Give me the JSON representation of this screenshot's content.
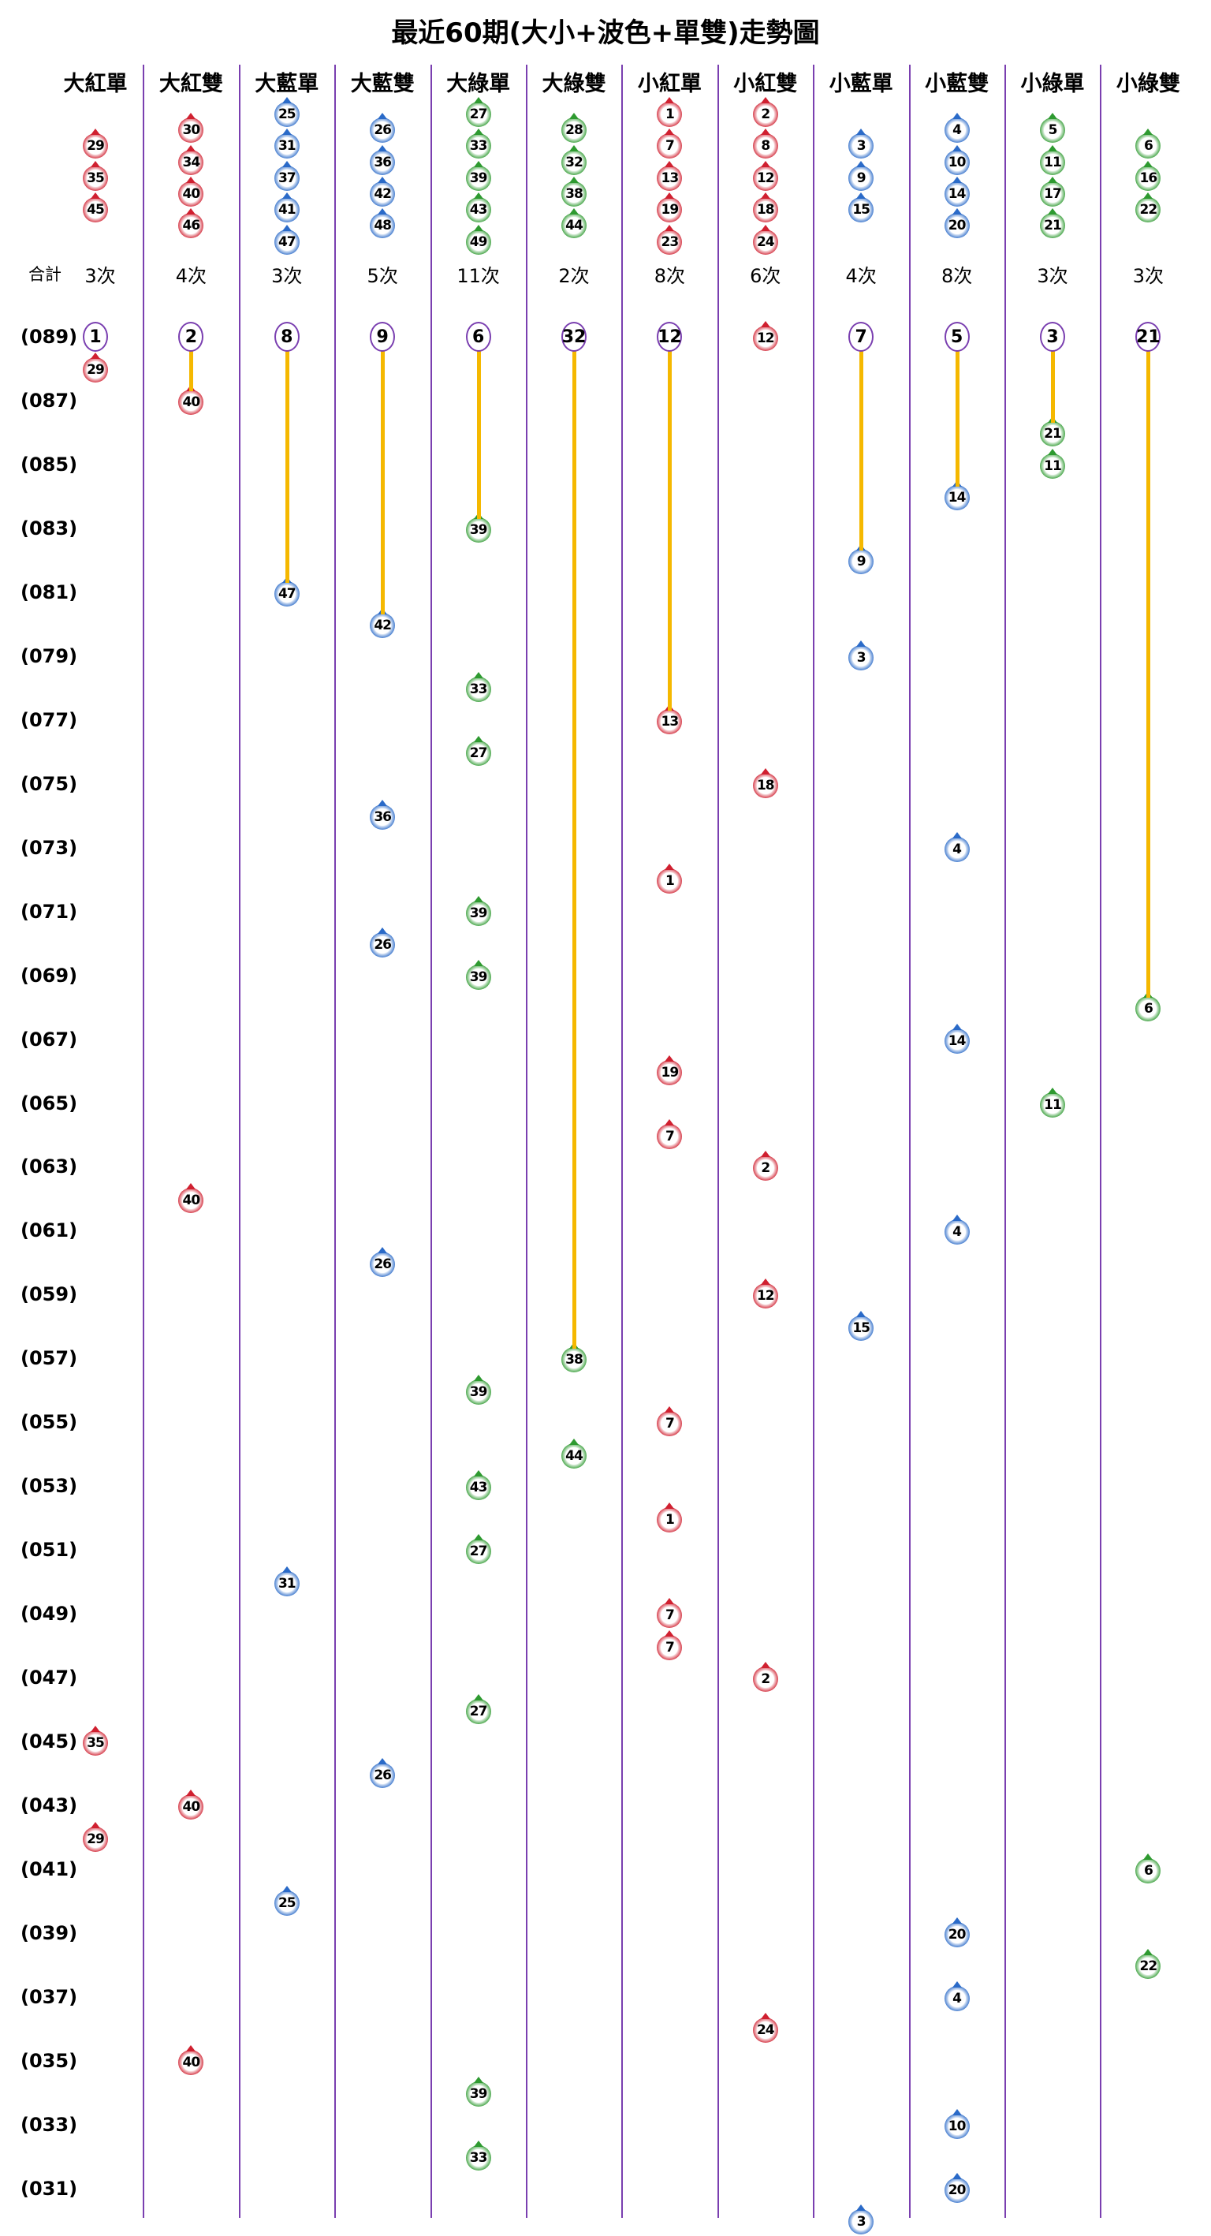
{
  "chart_data": {
    "type": "table",
    "title": "最近60期(大小+波色+單雙)走勢圖",
    "total_label": "合計",
    "periods": [
      "089",
      "088",
      "087",
      "086",
      "085",
      "084",
      "083",
      "082",
      "081",
      "080",
      "079",
      "078",
      "077",
      "076",
      "075",
      "074",
      "073",
      "072",
      "071",
      "070",
      "069",
      "068",
      "067",
      "066",
      "065",
      "064",
      "063",
      "062",
      "061",
      "060",
      "059",
      "058",
      "057",
      "056",
      "055",
      "054",
      "053",
      "052",
      "051",
      "050",
      "049",
      "048",
      "047",
      "046",
      "045",
      "044",
      "043",
      "042",
      "041",
      "040",
      "039",
      "038",
      "037",
      "036",
      "035",
      "034",
      "033",
      "032",
      "031",
      "030"
    ],
    "row_labels": [
      "(089)",
      "(087)",
      "(085)",
      "(083)",
      "(081)",
      "(079)",
      "(077)",
      "(075)",
      "(073)",
      "(071)",
      "(069)",
      "(067)",
      "(065)",
      "(063)",
      "(061)",
      "(059)",
      "(057)",
      "(055)",
      "(053)",
      "(051)",
      "(049)",
      "(047)",
      "(045)",
      "(043)",
      "(041)",
      "(039)",
      "(037)",
      "(035)",
      "(033)",
      "(031)"
    ],
    "line_color": "#f5b800",
    "columns": [
      {
        "header": "大紅單",
        "color": "#d02030",
        "total": "3次",
        "omission": "1",
        "top": [
          {
            "n": "29",
            "slot": 2
          },
          {
            "n": "35",
            "slot": 4
          },
          {
            "n": "45",
            "slot": 6
          }
        ],
        "balls": [
          {
            "p": "088",
            "n": "29"
          },
          {
            "p": "045",
            "n": "35"
          },
          {
            "p": "042",
            "n": "29"
          }
        ]
      },
      {
        "header": "大紅雙",
        "color": "#d02030",
        "total": "4次",
        "omission": "2",
        "top": [
          {
            "n": "30",
            "slot": 1
          },
          {
            "n": "34",
            "slot": 3
          },
          {
            "n": "40",
            "slot": 5
          },
          {
            "n": "46",
            "slot": 7
          }
        ],
        "balls": [
          {
            "p": "087",
            "n": "40"
          },
          {
            "p": "062",
            "n": "40"
          },
          {
            "p": "043",
            "n": "40"
          },
          {
            "p": "035",
            "n": "40"
          }
        ]
      },
      {
        "header": "大藍單",
        "color": "#2a6ac8",
        "total": "3次",
        "omission": "8",
        "top": [
          {
            "n": "25",
            "slot": 0
          },
          {
            "n": "31",
            "slot": 2
          },
          {
            "n": "37",
            "slot": 4
          },
          {
            "n": "41",
            "slot": 6
          },
          {
            "n": "47",
            "slot": 8
          }
        ],
        "balls": [
          {
            "p": "081",
            "n": "47"
          },
          {
            "p": "050",
            "n": "31"
          },
          {
            "p": "040",
            "n": "25"
          }
        ]
      },
      {
        "header": "大藍雙",
        "color": "#2a6ac8",
        "total": "5次",
        "omission": "9",
        "top": [
          {
            "n": "26",
            "slot": 1
          },
          {
            "n": "36",
            "slot": 3
          },
          {
            "n": "42",
            "slot": 5
          },
          {
            "n": "48",
            "slot": 7
          }
        ],
        "balls": [
          {
            "p": "080",
            "n": "42"
          },
          {
            "p": "074",
            "n": "36"
          },
          {
            "p": "070",
            "n": "26"
          },
          {
            "p": "060",
            "n": "26"
          },
          {
            "p": "044",
            "n": "26"
          }
        ]
      },
      {
        "header": "大綠單",
        "color": "#2e9a30",
        "total": "11次",
        "omission": "6",
        "top": [
          {
            "n": "27",
            "slot": 0
          },
          {
            "n": "33",
            "slot": 2
          },
          {
            "n": "39",
            "slot": 4
          },
          {
            "n": "43",
            "slot": 6
          },
          {
            "n": "49",
            "slot": 8
          }
        ],
        "balls": [
          {
            "p": "083",
            "n": "39"
          },
          {
            "p": "078",
            "n": "33"
          },
          {
            "p": "076",
            "n": "27"
          },
          {
            "p": "071",
            "n": "39"
          },
          {
            "p": "069",
            "n": "39"
          },
          {
            "p": "056",
            "n": "39"
          },
          {
            "p": "053",
            "n": "43"
          },
          {
            "p": "051",
            "n": "27"
          },
          {
            "p": "046",
            "n": "27"
          },
          {
            "p": "034",
            "n": "39"
          },
          {
            "p": "032",
            "n": "33"
          }
        ]
      },
      {
        "header": "大綠雙",
        "color": "#2e9a30",
        "total": "2次",
        "omission": "32",
        "top": [
          {
            "n": "28",
            "slot": 1
          },
          {
            "n": "32",
            "slot": 3
          },
          {
            "n": "38",
            "slot": 5
          },
          {
            "n": "44",
            "slot": 7
          }
        ],
        "balls": [
          {
            "p": "057",
            "n": "38"
          },
          {
            "p": "054",
            "n": "44"
          }
        ]
      },
      {
        "header": "小紅單",
        "color": "#d02030",
        "total": "8次",
        "omission": "12",
        "top": [
          {
            "n": "1",
            "slot": 0
          },
          {
            "n": "7",
            "slot": 2
          },
          {
            "n": "13",
            "slot": 4
          },
          {
            "n": "19",
            "slot": 6
          },
          {
            "n": "23",
            "slot": 8
          }
        ],
        "balls": [
          {
            "p": "077",
            "n": "13"
          },
          {
            "p": "072",
            "n": "1"
          },
          {
            "p": "066",
            "n": "19"
          },
          {
            "p": "064",
            "n": "7"
          },
          {
            "p": "055",
            "n": "7"
          },
          {
            "p": "052",
            "n": "1"
          },
          {
            "p": "049",
            "n": "7"
          },
          {
            "p": "048",
            "n": "7"
          }
        ]
      },
      {
        "header": "小紅雙",
        "color": "#d02030",
        "total": "6次",
        "omission": "",
        "top": [
          {
            "n": "2",
            "slot": 0
          },
          {
            "n": "8",
            "slot": 2
          },
          {
            "n": "12",
            "slot": 4
          },
          {
            "n": "18",
            "slot": 6
          },
          {
            "n": "24",
            "slot": 8
          }
        ],
        "balls": [
          {
            "p": "089",
            "n": "12"
          },
          {
            "p": "075",
            "n": "18"
          },
          {
            "p": "063",
            "n": "2"
          },
          {
            "p": "059",
            "n": "12"
          },
          {
            "p": "047",
            "n": "2"
          },
          {
            "p": "036",
            "n": "24"
          }
        ]
      },
      {
        "header": "小藍單",
        "color": "#2a6ac8",
        "total": "4次",
        "omission": "7",
        "top": [
          {
            "n": "3",
            "slot": 2
          },
          {
            "n": "9",
            "slot": 4
          },
          {
            "n": "15",
            "slot": 6
          }
        ],
        "balls": [
          {
            "p": "082",
            "n": "9"
          },
          {
            "p": "079",
            "n": "3"
          },
          {
            "p": "058",
            "n": "15"
          },
          {
            "p": "030",
            "n": "3"
          }
        ]
      },
      {
        "header": "小藍雙",
        "color": "#2a6ac8",
        "total": "8次",
        "omission": "5",
        "top": [
          {
            "n": "4",
            "slot": 1
          },
          {
            "n": "10",
            "slot": 3
          },
          {
            "n": "14",
            "slot": 5
          },
          {
            "n": "20",
            "slot": 7
          }
        ],
        "balls": [
          {
            "p": "084",
            "n": "14"
          },
          {
            "p": "073",
            "n": "4"
          },
          {
            "p": "067",
            "n": "14"
          },
          {
            "p": "061",
            "n": "4"
          },
          {
            "p": "039",
            "n": "20"
          },
          {
            "p": "037",
            "n": "4"
          },
          {
            "p": "033",
            "n": "10"
          },
          {
            "p": "031",
            "n": "20"
          }
        ]
      },
      {
        "header": "小綠單",
        "color": "#2e9a30",
        "total": "3次",
        "omission": "3",
        "top": [
          {
            "n": "5",
            "slot": 1
          },
          {
            "n": "11",
            "slot": 3
          },
          {
            "n": "17",
            "slot": 5
          },
          {
            "n": "21",
            "slot": 7
          }
        ],
        "balls": [
          {
            "p": "086",
            "n": "21"
          },
          {
            "p": "085",
            "n": "11"
          },
          {
            "p": "065",
            "n": "11"
          }
        ]
      },
      {
        "header": "小綠雙",
        "color": "#2e9a30",
        "total": "3次",
        "omission": "21",
        "top": [
          {
            "n": "6",
            "slot": 2
          },
          {
            "n": "16",
            "slot": 4
          },
          {
            "n": "22",
            "slot": 6
          }
        ],
        "balls": [
          {
            "p": "068",
            "n": "6"
          },
          {
            "p": "041",
            "n": "6"
          },
          {
            "p": "038",
            "n": "22"
          }
        ]
      }
    ]
  }
}
